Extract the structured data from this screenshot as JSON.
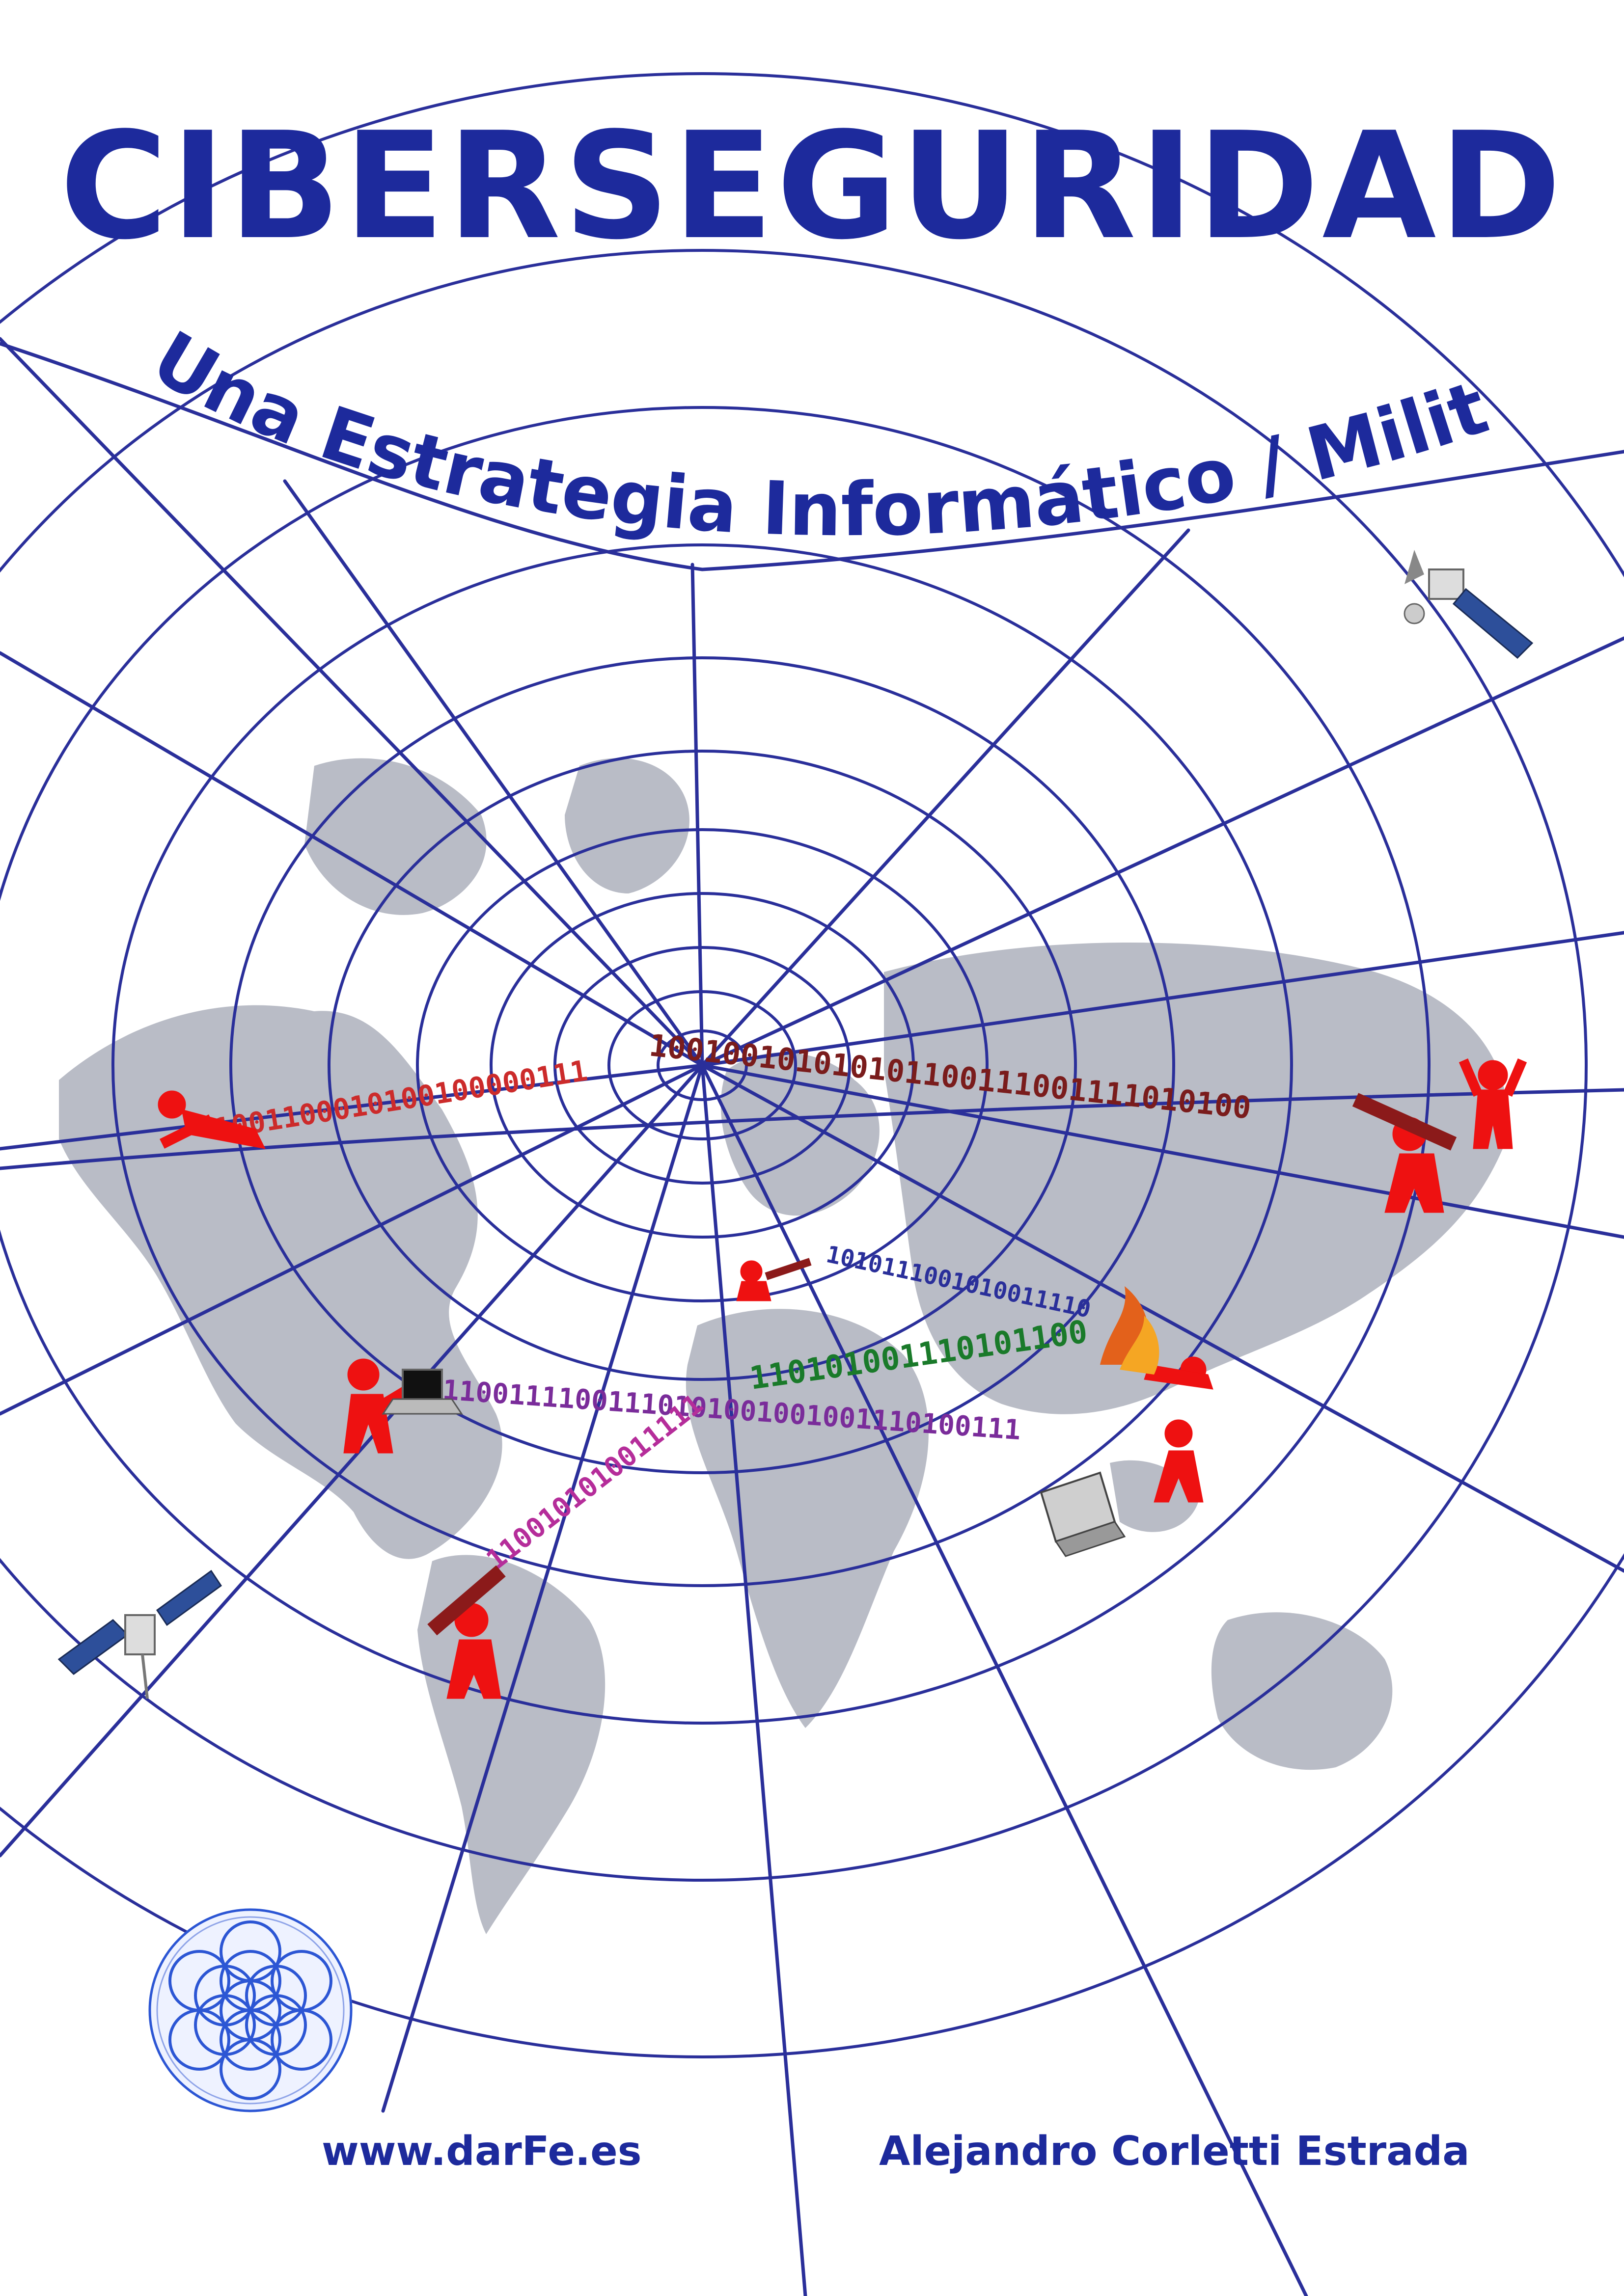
{
  "cover": {
    "title": "CIBERSEGURIDAD",
    "subtitle": "Una Estrategia Informático / Militar",
    "website": "www.darFe.es",
    "author": "Alejandro Corletti Estrada"
  },
  "binary_streams": [
    "1001100010100100000111",
    "100100101010101100111001111010100",
    "1010111001010011110",
    "110101001110101100",
    "11001111001110101001001001110100111",
    "1100101010011111"
  ],
  "colors": {
    "title": "#1d2a9c",
    "web": "#2a2f9a",
    "continents": "#b9bcc6",
    "figures": "#ee1111",
    "logo": "#2c56d4"
  },
  "icons": [
    "satellite-icon-top-right",
    "satellite-icon-bottom-left",
    "laptop-icon-left",
    "laptop-icon-right",
    "fire-icon",
    "flower-of-life-logo"
  ]
}
